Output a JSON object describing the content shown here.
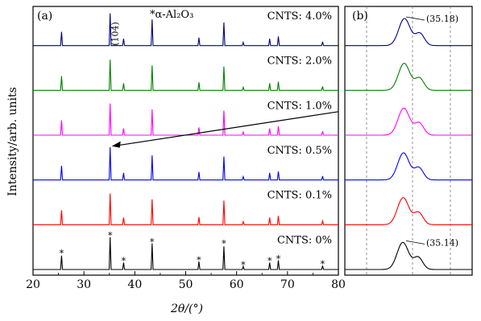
{
  "figure": {
    "ylabel": "Intensity/arb. units",
    "xlabel": "2θ/(°)"
  },
  "chart_data": [
    {
      "panel": "(a)",
      "type": "line",
      "title": "*α-Al₂O₃",
      "xlabel": "2θ/(°)",
      "ylabel": "Intensity/arb. units",
      "xlim": [
        20,
        80
      ],
      "xticks": [
        20,
        30,
        40,
        50,
        60,
        70,
        80
      ],
      "series": [
        {
          "name": "CNTS: 4.0%",
          "color": "#000080"
        },
        {
          "name": "CNTS: 2.0%",
          "color": "#008000"
        },
        {
          "name": "CNTS: 1.0%",
          "color": "#ff00ff"
        },
        {
          "name": "CNTS: 0.5%",
          "color": "#0000ff"
        },
        {
          "name": "CNTS: 0.1%",
          "color": "#ff0000"
        },
        {
          "name": "CNTS: 0%",
          "color": "#000000"
        }
      ],
      "peaks": {
        "x": [
          25.6,
          35.15,
          37.8,
          43.4,
          52.6,
          57.5,
          61.3,
          66.5,
          68.2,
          76.9
        ],
        "rel_height": [
          0.45,
          1.0,
          0.22,
          0.8,
          0.25,
          0.75,
          0.1,
          0.22,
          0.28,
          0.12
        ]
      },
      "peak_label": "(104)",
      "star_marker": "*",
      "grid": false
    },
    {
      "panel": "(b)",
      "type": "line",
      "annotations": [
        {
          "text": "(35.18)",
          "series": "CNTS: 4.0%"
        },
        {
          "text": "(35.14)",
          "series": "CNTS: 0%"
        }
      ],
      "reference_lines": "dashed vertical",
      "grid": false
    }
  ]
}
